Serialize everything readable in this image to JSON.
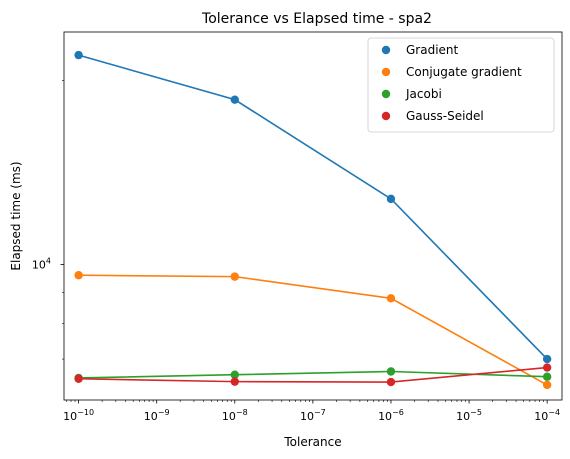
{
  "chart_data": {
    "type": "line",
    "title": "Tolerance vs Elapsed time - spa2",
    "xlabel": "Tolerance",
    "ylabel": "Elapsed time (ms)",
    "xscale": "log",
    "yscale": "log",
    "xlim": [
      6.5e-11,
      0.000155
    ],
    "ylim": [
      6000,
      24000
    ],
    "x": [
      1e-10,
      1e-08,
      1e-06,
      0.0001
    ],
    "x_ticks": [
      {
        "value": 1e-10,
        "base": "10",
        "exp": "−10"
      },
      {
        "value": 1e-09,
        "base": "10",
        "exp": "−9"
      },
      {
        "value": 1e-08,
        "base": "10",
        "exp": "−8"
      },
      {
        "value": 1e-07,
        "base": "10",
        "exp": "−7"
      },
      {
        "value": 1e-06,
        "base": "10",
        "exp": "−6"
      },
      {
        "value": 1e-05,
        "base": "10",
        "exp": "−5"
      },
      {
        "value": 0.0001,
        "base": "10",
        "exp": "−4"
      }
    ],
    "y_ticks": [
      {
        "value": 10000,
        "base": "10",
        "exp": "4"
      }
    ],
    "y_minor_ticks": [
      7000,
      8000,
      9000,
      20000
    ],
    "grid": false,
    "legend_position": "top-right",
    "series": [
      {
        "name": "Gradient",
        "color": "#1f77b4",
        "values": [
          22000,
          18600,
          12800,
          7000
        ]
      },
      {
        "name": "Conjugate gradient",
        "color": "#ff7f0e",
        "values": [
          9600,
          9550,
          8800,
          6350
        ]
      },
      {
        "name": "Jacobi",
        "color": "#2ca02c",
        "values": [
          6520,
          6600,
          6680,
          6550
        ]
      },
      {
        "name": "Gauss-Seidel",
        "color": "#d62728",
        "values": [
          6500,
          6430,
          6420,
          6780
        ]
      }
    ]
  }
}
